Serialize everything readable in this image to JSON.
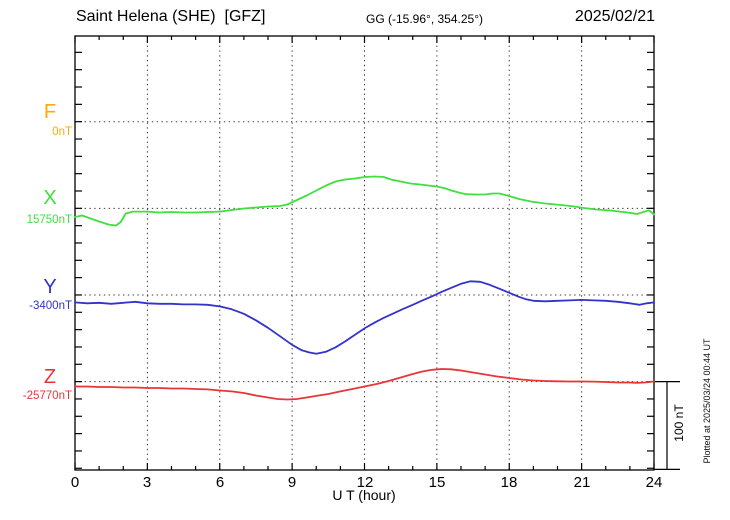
{
  "header": {
    "station_title": "Saint Helena (SHE)  [GFZ]",
    "coords": "GG (-15.96°, 354.25°)",
    "date": "2025/02/21"
  },
  "axis": {
    "x_label": "U T (hour)",
    "x_ticks": [
      "0",
      "3",
      "6",
      "9",
      "12",
      "15",
      "18",
      "21",
      "24"
    ]
  },
  "scale_bar": {
    "label": "100 nT"
  },
  "footer_note": "Plotted at 2025/03/24 00:44 UT",
  "components": [
    {
      "id": "F",
      "label": "F",
      "baseline_label": "0nT",
      "color": "#ffaa00"
    },
    {
      "id": "X",
      "label": "X",
      "baseline_label": "15750nT",
      "color": "#3fdf3f"
    },
    {
      "id": "Y",
      "label": "Y",
      "baseline_label": "-3400nT",
      "color": "#3232cc"
    },
    {
      "id": "Z",
      "label": "Z",
      "baseline_label": "-25770nT",
      "color": "#e83535"
    }
  ],
  "chart_data": {
    "type": "line",
    "title": "Saint Helena (SHE) [GFZ] magnetogram, 2025/02/21",
    "xlabel": "U T (hour)",
    "x_range": [
      0,
      24
    ],
    "x_tick_major_step": 3,
    "x_tick_minor_step": 1,
    "grid": "dotted vertical lines every 3 hours; dotted horizontal line at each component baseline",
    "y_scale": {
      "nT_per_division": 100,
      "scale_bar_label": "100 nT"
    },
    "legend_position": "left margin (component letters with baseline values)",
    "series": [
      {
        "name": "F",
        "color": "#ffaa00",
        "baseline_nT": 0,
        "unit": "nT offset from baseline",
        "points": []
      },
      {
        "name": "X",
        "color": "#3fdf3f",
        "baseline_nT": 15750,
        "unit": "nT offset from baseline",
        "points": [
          [
            0,
            -10
          ],
          [
            0.3,
            -8.3
          ],
          [
            0.6,
            -11.2
          ],
          [
            1,
            -15.2
          ],
          [
            1.4,
            -18.7
          ],
          [
            1.7,
            -19.8
          ],
          [
            1.9,
            -15.8
          ],
          [
            2.1,
            -6
          ],
          [
            2.4,
            -3.7
          ],
          [
            3,
            -3.7
          ],
          [
            3.5,
            -4.8
          ],
          [
            4,
            -4.2
          ],
          [
            4.5,
            -4.8
          ],
          [
            5,
            -4.8
          ],
          [
            5.5,
            -4.2
          ],
          [
            6,
            -3.7
          ],
          [
            6.5,
            -1.9
          ],
          [
            7,
            -0.2
          ],
          [
            7.5,
            1
          ],
          [
            8,
            2.1
          ],
          [
            8.5,
            2.7
          ],
          [
            8.8,
            4.4
          ],
          [
            9.2,
            9.6
          ],
          [
            9.6,
            14.8
          ],
          [
            10,
            20.6
          ],
          [
            10.4,
            26.3
          ],
          [
            10.8,
            31
          ],
          [
            11.2,
            33.3
          ],
          [
            11.6,
            34.4
          ],
          [
            12,
            36.2
          ],
          [
            12.4,
            36.7
          ],
          [
            12.8,
            36.2
          ],
          [
            13.1,
            33.3
          ],
          [
            13.5,
            31
          ],
          [
            13.9,
            28.7
          ],
          [
            14.3,
            27.5
          ],
          [
            15,
            25.2
          ],
          [
            15.3,
            23.5
          ],
          [
            15.6,
            20.6
          ],
          [
            15.9,
            18.3
          ],
          [
            16.2,
            16.5
          ],
          [
            16.6,
            16
          ],
          [
            17,
            16
          ],
          [
            17.3,
            17.1
          ],
          [
            17.6,
            17.1
          ],
          [
            18,
            14.2
          ],
          [
            18.4,
            10.8
          ],
          [
            18.9,
            7.9
          ],
          [
            19.5,
            5.6
          ],
          [
            20.2,
            3.8
          ],
          [
            20.7,
            2.1
          ],
          [
            21.1,
            0.4
          ],
          [
            21.6,
            -1.3
          ],
          [
            22.2,
            -2.5
          ],
          [
            22.9,
            -4.8
          ],
          [
            23.3,
            -6.5
          ],
          [
            23.6,
            -3.7
          ],
          [
            23.8,
            -2.5
          ],
          [
            24,
            -7.1
          ]
        ]
      },
      {
        "name": "Y",
        "color": "#3232cc",
        "baseline_nT": -3400,
        "unit": "nT offset from baseline",
        "points": [
          [
            0,
            -8.5
          ],
          [
            0.5,
            -9.6
          ],
          [
            1,
            -9
          ],
          [
            1.5,
            -10.2
          ],
          [
            2,
            -9
          ],
          [
            2.5,
            -7.9
          ],
          [
            3,
            -9.6
          ],
          [
            3.5,
            -10.2
          ],
          [
            4,
            -10.2
          ],
          [
            4.5,
            -10.8
          ],
          [
            5,
            -10.8
          ],
          [
            5.5,
            -11.3
          ],
          [
            6,
            -13.1
          ],
          [
            6.5,
            -16.5
          ],
          [
            7,
            -21.7
          ],
          [
            7.5,
            -29.2
          ],
          [
            8,
            -37.9
          ],
          [
            8.5,
            -47.7
          ],
          [
            9,
            -57.5
          ],
          [
            9.4,
            -63.8
          ],
          [
            9.7,
            -66.2
          ],
          [
            10,
            -67.7
          ],
          [
            10.4,
            -65.6
          ],
          [
            10.8,
            -60.4
          ],
          [
            11.2,
            -53.5
          ],
          [
            11.6,
            -46
          ],
          [
            12,
            -38.5
          ],
          [
            12.4,
            -32.1
          ],
          [
            12.8,
            -26.3
          ],
          [
            13.2,
            -21.2
          ],
          [
            13.6,
            -16
          ],
          [
            14,
            -11.3
          ],
          [
            14.4,
            -6.2
          ],
          [
            14.8,
            -1.5
          ],
          [
            15.2,
            3.7
          ],
          [
            15.6,
            8.3
          ],
          [
            16,
            12.9
          ],
          [
            16.4,
            15.8
          ],
          [
            16.8,
            15.2
          ],
          [
            17.2,
            11.7
          ],
          [
            17.6,
            7.1
          ],
          [
            18,
            2.5
          ],
          [
            18.4,
            -2.1
          ],
          [
            18.7,
            -5
          ],
          [
            19,
            -6.7
          ],
          [
            19.5,
            -7.3
          ],
          [
            20,
            -6.7
          ],
          [
            20.5,
            -6.2
          ],
          [
            21,
            -5.6
          ],
          [
            21.5,
            -6.2
          ],
          [
            22,
            -6.7
          ],
          [
            22.5,
            -7.9
          ],
          [
            23,
            -9.6
          ],
          [
            23.4,
            -11.3
          ],
          [
            23.7,
            -9.6
          ],
          [
            24,
            -8.5
          ]
        ]
      },
      {
        "name": "Z",
        "color": "#e83535",
        "baseline_nT": -25770,
        "unit": "nT offset from baseline",
        "points": [
          [
            0,
            -5.6
          ],
          [
            0.5,
            -5.6
          ],
          [
            1,
            -6.2
          ],
          [
            1.5,
            -6.2
          ],
          [
            2,
            -6.7
          ],
          [
            2.5,
            -6.7
          ],
          [
            3,
            -7.3
          ],
          [
            3.5,
            -7.3
          ],
          [
            4,
            -7.9
          ],
          [
            4.5,
            -7.9
          ],
          [
            5,
            -8.5
          ],
          [
            5.5,
            -9
          ],
          [
            6,
            -10.2
          ],
          [
            6.5,
            -11.3
          ],
          [
            7,
            -13.1
          ],
          [
            7.5,
            -16
          ],
          [
            8,
            -18.3
          ],
          [
            8.4,
            -20
          ],
          [
            8.8,
            -20.6
          ],
          [
            9.2,
            -20
          ],
          [
            9.6,
            -18.3
          ],
          [
            10,
            -16.5
          ],
          [
            10.5,
            -14.2
          ],
          [
            11,
            -11.3
          ],
          [
            11.5,
            -8.5
          ],
          [
            12,
            -5.6
          ],
          [
            12.5,
            -2.7
          ],
          [
            13,
            0.8
          ],
          [
            13.5,
            4.8
          ],
          [
            14,
            8.8
          ],
          [
            14.4,
            11.7
          ],
          [
            14.8,
            13.7
          ],
          [
            15.2,
            14.6
          ],
          [
            15.6,
            14.3
          ],
          [
            16,
            12.9
          ],
          [
            16.5,
            10.6
          ],
          [
            17,
            8.3
          ],
          [
            17.5,
            6
          ],
          [
            18,
            4.2
          ],
          [
            18.5,
            2.5
          ],
          [
            19,
            1.3
          ],
          [
            19.5,
            0.8
          ],
          [
            20,
            0.4
          ],
          [
            20.5,
            0.2
          ],
          [
            21,
            0.2
          ],
          [
            21.5,
            0
          ],
          [
            22,
            -0.4
          ],
          [
            22.5,
            -1
          ],
          [
            23,
            -1
          ],
          [
            23.3,
            -1.5
          ],
          [
            23.6,
            -1
          ],
          [
            24,
            0.2
          ]
        ]
      }
    ]
  }
}
